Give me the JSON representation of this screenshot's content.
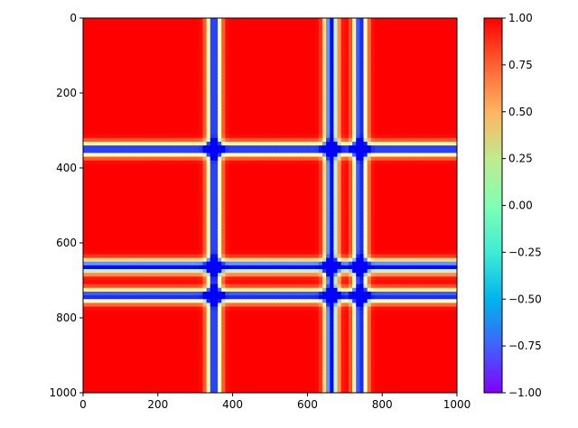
{
  "chart_data": {
    "type": "heatmap",
    "title": "",
    "xlabel": "",
    "ylabel": "",
    "x_range": [
      0,
      1000
    ],
    "y_range": [
      0,
      1000
    ],
    "y_inverted": true,
    "x_ticks": [
      {
        "value": 0,
        "label": "0"
      },
      {
        "value": 200,
        "label": "200"
      },
      {
        "value": 400,
        "label": "400"
      },
      {
        "value": 600,
        "label": "600"
      },
      {
        "value": 800,
        "label": "800"
      },
      {
        "value": 1000,
        "label": "1000"
      }
    ],
    "y_ticks": [
      {
        "value": 0,
        "label": "0"
      },
      {
        "value": 200,
        "label": "200"
      },
      {
        "value": 400,
        "label": "400"
      },
      {
        "value": 600,
        "label": "600"
      },
      {
        "value": 800,
        "label": "800"
      },
      {
        "value": 1000,
        "label": "1000"
      }
    ],
    "colormap": "rainbow",
    "background_value": 1.0,
    "bands": [
      {
        "axis": "both",
        "center": 350,
        "min_value": -1.0
      },
      {
        "axis": "both",
        "center": 663,
        "min_value": -1.0
      },
      {
        "axis": "both",
        "center": 741,
        "min_value": -1.0
      }
    ],
    "band_halfwidth": 12,
    "colorbar": {
      "range": [
        -1.0,
        1.0
      ],
      "ticks": [
        {
          "value": 1.0,
          "label": "1.00"
        },
        {
          "value": 0.75,
          "label": "0.75"
        },
        {
          "value": 0.5,
          "label": "0.50"
        },
        {
          "value": 0.25,
          "label": "0.25"
        },
        {
          "value": 0.0,
          "label": "0.00"
        },
        {
          "value": -0.25,
          "label": "−0.25"
        },
        {
          "value": -0.5,
          "label": "−0.50"
        },
        {
          "value": -0.75,
          "label": "−0.75"
        },
        {
          "value": -1.0,
          "label": "−1.00"
        }
      ]
    },
    "grid": false,
    "legend": "none"
  }
}
